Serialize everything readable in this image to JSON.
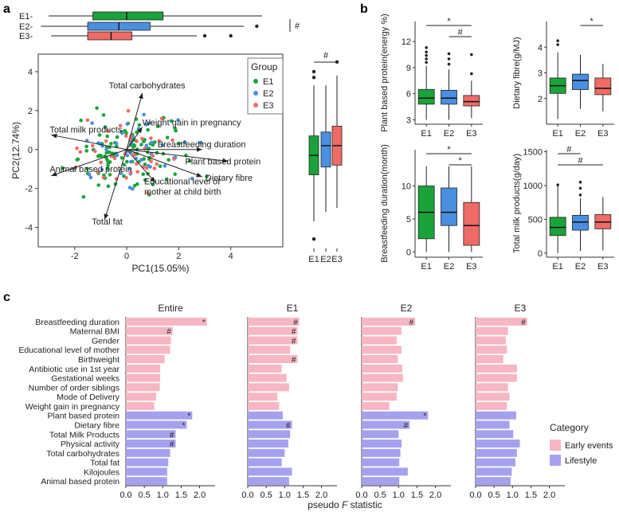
{
  "panels": {
    "a": "a",
    "b": "b",
    "c": "c"
  },
  "colors": {
    "E1": "#1aa33a",
    "E2": "#4a8fe0",
    "E3": "#ef6b66",
    "early": "#f7b6c3",
    "lifestyle": "#a6a1ee"
  },
  "chart_data": [
    {
      "id": "pc1-box",
      "type": "boxplot-horizontal",
      "groups": [
        "E1",
        "E2",
        "E3"
      ],
      "boxes": [
        {
          "group": "E1",
          "whisker_low": -3.0,
          "q1": -1.3,
          "median": 0.0,
          "q3": 1.4,
          "whisker_high": 5.2,
          "outliers": []
        },
        {
          "group": "E2",
          "whisker_low": -3.3,
          "q1": -1.5,
          "median": -0.3,
          "q3": 0.9,
          "whisker_high": 4.5,
          "outliers": [
            5.0
          ]
        },
        {
          "group": "E3",
          "whisker_low": -2.9,
          "q1": -1.5,
          "median": -0.6,
          "q3": 0.2,
          "whisker_high": 2.7,
          "outliers": [
            3.0,
            4.0
          ]
        }
      ],
      "xlim": [
        -3.4,
        6.0
      ],
      "annotation": "#"
    },
    {
      "id": "pca-biplot",
      "type": "scatter",
      "xlabel": "PC1(15.05%)",
      "ylabel": "PC2(12.74%)",
      "xticks": [
        "-2",
        "0",
        "2",
        "4"
      ],
      "yticks": [
        "-4",
        "-2",
        "0",
        "2",
        "4"
      ],
      "xlim": [
        -3.4,
        6.0
      ],
      "ylim": [
        -5.0,
        4.9
      ],
      "legend": {
        "title": "Group",
        "position": "top-right",
        "items": [
          "E1",
          "E2",
          "E3"
        ]
      },
      "loadings": [
        {
          "label": "Total carbohydrates",
          "x": 0.6,
          "y": 2.9
        },
        {
          "label": "Weight gain in pregnancy",
          "x": 0.6,
          "y": 1.15
        },
        {
          "label": "Total milk products",
          "x": -2.9,
          "y": 0.75
        },
        {
          "label": "Breastfeeding duration",
          "x": 2.9,
          "y": 0.0
        },
        {
          "label": "Plant based protein",
          "x": 3.9,
          "y": -0.6
        },
        {
          "label": "Dietary fibre",
          "x": 2.9,
          "y": -1.4
        },
        {
          "label": "Animal based protein",
          "x": -2.9,
          "y": -1.35
        },
        {
          "label": "Educational level of mother at child birth",
          "lines": [
            "Educational level of",
            "mother at child birth"
          ],
          "x": 1.1,
          "y": -1.7
        },
        {
          "label": "Total fat",
          "x": -0.85,
          "y": -3.6
        }
      ]
    },
    {
      "id": "pc2-box",
      "type": "boxplot-vertical",
      "groups": [
        "E1",
        "E2",
        "E3"
      ],
      "boxes": [
        {
          "group": "E1",
          "whisker_low": -3.7,
          "q1": -1.3,
          "median": -0.3,
          "q3": 0.7,
          "whisker_high": 3.3,
          "outliers": [
            3.7,
            4.0,
            -4.6
          ]
        },
        {
          "group": "E2",
          "whisker_low": -3.2,
          "q1": -0.9,
          "median": 0.2,
          "q3": 0.9,
          "whisker_high": 3.3,
          "outliers": []
        },
        {
          "group": "E3",
          "whisker_low": -3.0,
          "q1": -0.8,
          "median": 0.2,
          "q3": 1.2,
          "whisker_high": 3.8,
          "outliers": [
            4.5
          ]
        }
      ],
      "ylim": [
        -5.0,
        4.9
      ],
      "annotation": "#"
    },
    {
      "id": "plant-protein",
      "type": "boxplot-vertical",
      "ylabel": "Plant based protein(energy %)",
      "categories": [
        "E1",
        "E2",
        "E3"
      ],
      "yticks": [
        "3",
        "6",
        "9",
        "12"
      ],
      "ylim": [
        2.5,
        14.3
      ],
      "boxes": [
        {
          "group": "E1",
          "whisker_low": 3.0,
          "q1": 4.8,
          "median": 5.5,
          "q3": 6.5,
          "whisker_high": 9.2,
          "outliers": [
            9.6,
            10.0,
            10.4,
            10.8,
            11.3
          ]
        },
        {
          "group": "E2",
          "whisker_low": 3.0,
          "q1": 4.8,
          "median": 5.5,
          "q3": 6.4,
          "whisker_high": 8.8,
          "outliers": [
            9.4,
            10.0,
            10.6
          ]
        },
        {
          "group": "E3",
          "whisker_low": 3.2,
          "q1": 4.6,
          "median": 5.1,
          "q3": 5.8,
          "whisker_high": 7.5,
          "outliers": [
            8.3,
            10.5
          ]
        }
      ],
      "significance": [
        {
          "from": 0,
          "to": 2,
          "label": "*"
        },
        {
          "from": 1,
          "to": 2,
          "label": "#"
        }
      ]
    },
    {
      "id": "dietary-fibre",
      "type": "boxplot-vertical",
      "ylabel": "Dietary fibre(g/MJ)",
      "categories": [
        "E1",
        "E2",
        "E3"
      ],
      "yticks": [
        "2",
        "3",
        "4"
      ],
      "ylim": [
        1.0,
        5.0
      ],
      "boxes": [
        {
          "group": "E1",
          "whisker_low": 1.2,
          "q1": 2.2,
          "median": 2.5,
          "q3": 2.8,
          "whisker_high": 3.8,
          "outliers": [
            4.1,
            4.25
          ]
        },
        {
          "group": "E2",
          "whisker_low": 1.6,
          "q1": 2.35,
          "median": 2.7,
          "q3": 2.95,
          "whisker_high": 3.7,
          "outliers": []
        },
        {
          "group": "E3",
          "whisker_low": 1.5,
          "q1": 2.15,
          "median": 2.4,
          "q3": 2.8,
          "whisker_high": 3.35,
          "outliers": []
        }
      ],
      "significance": [
        {
          "from": 1,
          "to": 2,
          "label": "*"
        }
      ]
    },
    {
      "id": "breastfeeding",
      "type": "boxplot-vertical",
      "ylabel": "Breastfeeding duration(month)",
      "categories": [
        "E1",
        "E2",
        "E3"
      ],
      "yticks": [
        "0",
        "5",
        "10"
      ],
      "ylim": [
        -0.8,
        15.5
      ],
      "boxes": [
        {
          "group": "E1",
          "whisker_low": 0,
          "q1": 2,
          "median": 6,
          "q3": 10,
          "whisker_high": 13,
          "outliers": []
        },
        {
          "group": "E2",
          "whisker_low": 0,
          "q1": 4,
          "median": 6,
          "q3": 9.7,
          "whisker_high": 13,
          "outliers": []
        },
        {
          "group": "E3",
          "whisker_low": 0,
          "q1": 1,
          "median": 4,
          "q3": 7.5,
          "whisker_high": 13,
          "outliers": []
        }
      ],
      "significance": [
        {
          "from": 0,
          "to": 2,
          "label": "*"
        },
        {
          "from": 1,
          "to": 2,
          "label": "*"
        }
      ]
    },
    {
      "id": "milk-products",
      "type": "boxplot-vertical",
      "ylabel": "Total milk products(g/day)",
      "categories": [
        "E1",
        "E2",
        "E3"
      ],
      "yticks": [
        "0",
        "500",
        "1000",
        "1500"
      ],
      "ylim": [
        -60,
        1530
      ],
      "boxes": [
        {
          "group": "E1",
          "whisker_low": 0,
          "q1": 260,
          "median": 380,
          "q3": 530,
          "whisker_high": 1000,
          "outliers": [
            1010
          ]
        },
        {
          "group": "E2",
          "whisker_low": 30,
          "q1": 340,
          "median": 460,
          "q3": 560,
          "whisker_high": 810,
          "outliers": [
            860,
            960,
            1050
          ]
        },
        {
          "group": "E3",
          "whisker_low": 40,
          "q1": 360,
          "median": 460,
          "q3": 570,
          "whisker_high": 830,
          "outliers": []
        }
      ],
      "significance": [
        {
          "from": 0,
          "to": 1,
          "label": "#"
        },
        {
          "from": 0,
          "to": 2,
          "label": "#"
        }
      ]
    },
    {
      "id": "pseudo-f",
      "type": "bar",
      "orientation": "horizontal",
      "facets": [
        "Entire",
        "E1",
        "E2",
        "E3"
      ],
      "xlabel_prefix": "pseudo ",
      "xlabel_italic": "F",
      "xlabel_suffix": " statistic",
      "xticks": [
        "0.0",
        "0.5",
        "1.0",
        "1.5",
        "2.0"
      ],
      "xlim": [
        0,
        2.42
      ],
      "categories": [
        "Breastfeeding duration",
        "Maternal BMI",
        "Gender",
        "Educational level of mother",
        "Birthweight",
        "Antibiotic use in 1st year",
        "Gestational weeks",
        "Number of order siblings",
        "Mode of Delivery",
        "Weight gain in pregnancy",
        "Plant based protein",
        "Dietary fibre",
        "Total Milk Products",
        "Physical activity",
        "Total carbohydrates",
        "Total fat",
        "Kilojoules",
        "Animal based protein"
      ],
      "category_group": [
        "Early events",
        "Early events",
        "Early events",
        "Early events",
        "Early events",
        "Early events",
        "Early events",
        "Early events",
        "Early events",
        "Early events",
        "Lifestyle",
        "Lifestyle",
        "Lifestyle",
        "Lifestyle",
        "Lifestyle",
        "Lifestyle",
        "Lifestyle",
        "Lifestyle"
      ],
      "series": [
        {
          "name": "Entire",
          "values": [
            2.2,
            1.27,
            1.22,
            1.2,
            1.05,
            0.93,
            0.93,
            0.92,
            0.82,
            0.77,
            1.8,
            1.65,
            1.35,
            1.35,
            1.2,
            1.15,
            1.12,
            1.12
          ],
          "marks": [
            "*",
            "#",
            "",
            "",
            "",
            "",
            "",
            "",
            "",
            "",
            "*",
            "*",
            "#",
            "#",
            "",
            "",
            "",
            ""
          ]
        },
        {
          "name": "E1",
          "values": [
            1.4,
            1.35,
            1.35,
            1.15,
            1.35,
            0.92,
            1.05,
            1.12,
            0.8,
            0.85,
            0.95,
            1.2,
            1.15,
            1.1,
            1.0,
            0.92,
            1.2,
            1.12
          ],
          "marks": [
            "#",
            "#",
            "#",
            "",
            "#",
            "",
            "",
            "",
            "",
            "",
            "",
            "#",
            "",
            "",
            "",
            "",
            "",
            ""
          ]
        },
        {
          "name": "E2",
          "values": [
            1.45,
            1.08,
            0.95,
            1.08,
            0.98,
            1.1,
            1.12,
            0.98,
            0.95,
            0.75,
            1.8,
            1.3,
            1.0,
            1.08,
            1.05,
            1.02,
            1.25,
            1.02
          ],
          "marks": [
            "#",
            "",
            "",
            "",
            "",
            "",
            "",
            "",
            "",
            "",
            "*",
            "#",
            "",
            "",
            "",
            "",
            "",
            ""
          ]
        },
        {
          "name": "E3",
          "values": [
            1.4,
            0.88,
            0.82,
            0.85,
            0.75,
            1.12,
            1.12,
            0.88,
            0.92,
            0.85,
            1.1,
            0.92,
            1.02,
            1.2,
            1.12,
            1.08,
            0.98,
            0.95
          ],
          "marks": [
            "#",
            "",
            "",
            "",
            "",
            "",
            "",
            "",
            "",
            "",
            "",
            "",
            "",
            "",
            "",
            "",
            "",
            ""
          ]
        }
      ],
      "legend": {
        "title": "Category",
        "position": "right",
        "items": [
          "Early events",
          "Lifestyle"
        ]
      }
    }
  ]
}
